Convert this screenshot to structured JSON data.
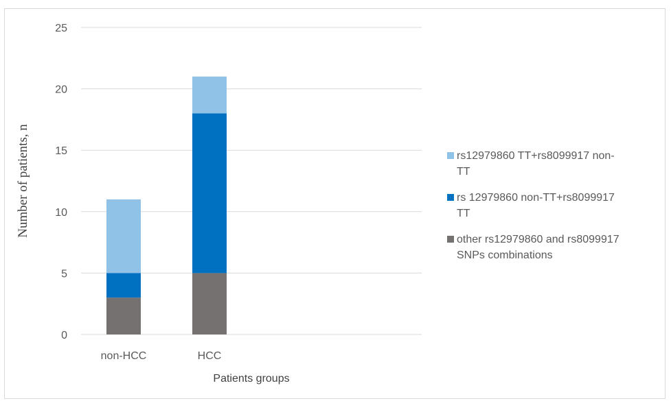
{
  "chart_data": {
    "type": "bar",
    "stacked": true,
    "categories": [
      "non-HCC",
      "HCC"
    ],
    "series": [
      {
        "name": "other rs12979860 and rs8099917 SNPs combinations",
        "values": [
          3,
          5
        ],
        "color": "#767171"
      },
      {
        "name": "rs 12979860 non-TT+rs8099917 TT",
        "values": [
          2,
          13
        ],
        "color": "#0070c0"
      },
      {
        "name": "rs12979860 TT+rs8099917 non-TT",
        "values": [
          6,
          3
        ],
        "color": "#8fc2e6"
      }
    ],
    "legend_order": [
      2,
      1,
      0
    ],
    "legend_lines": [
      [
        "rs12979860 TT+rs8099917 non-",
        "TT"
      ],
      [
        "rs 12979860 non-TT+rs8099917",
        "TT"
      ],
      [
        "other rs12979860 and rs8099917",
        "SNPs combinations"
      ]
    ],
    "xlabel": "Patients groups",
    "ylabel": "Number of patients, n",
    "ylim": [
      0,
      25
    ],
    "yticks": [
      0,
      5,
      10,
      15,
      20,
      25
    ],
    "grid": true,
    "legend_position": "right"
  }
}
